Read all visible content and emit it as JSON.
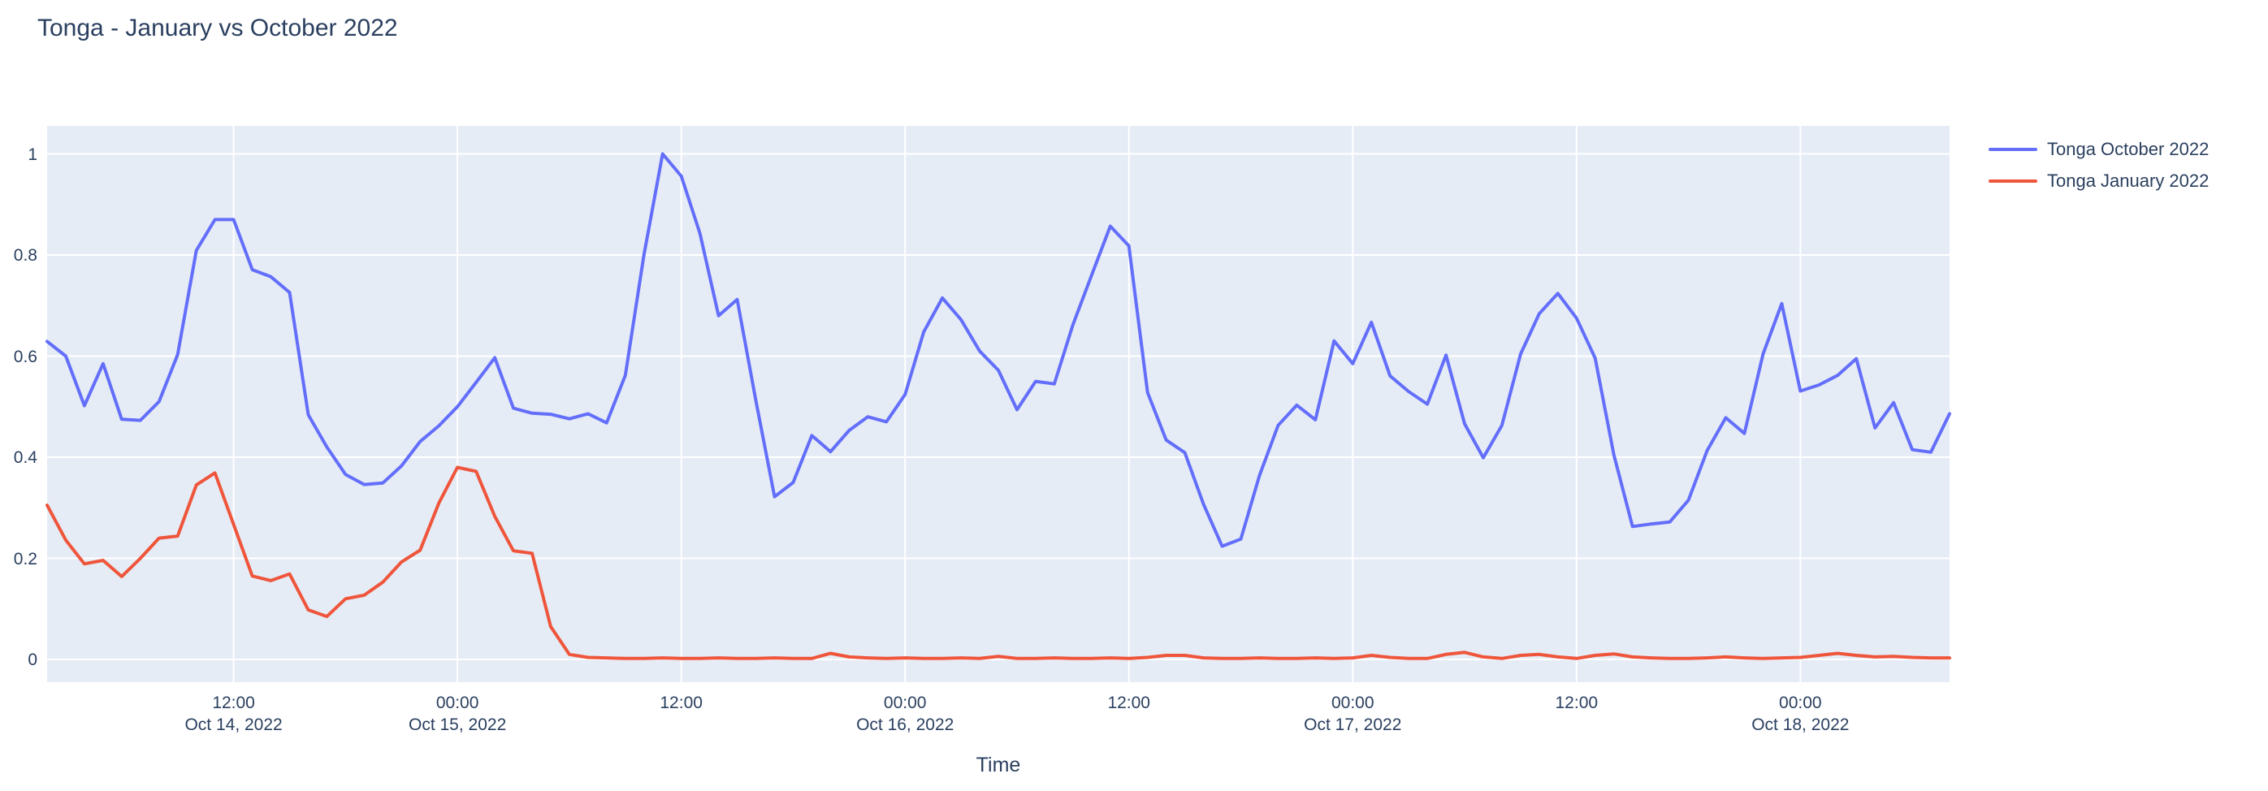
{
  "title": "Tonga - January vs October 2022",
  "colors": {
    "plot_background": "#e5ecf6",
    "grid": "#ffffff",
    "text": "#2a3f5f",
    "series_october": "#636efa",
    "series_january": "#ef553b",
    "page_background": "#ffffff"
  },
  "legend": {
    "position": "right-top",
    "items": [
      {
        "label": "Tonga October 2022",
        "color": "#636efa"
      },
      {
        "label": "Tonga January 2022",
        "color": "#ef553b"
      }
    ]
  },
  "chart_data": {
    "type": "line",
    "title": "Tonga - January vs October 2022",
    "xlabel": "Time",
    "ylabel": "",
    "grid": true,
    "legend_position": "right",
    "x_start": "2022-10-14 02:00",
    "x_step_hours": 1,
    "x_end": "2022-10-18 08:00",
    "ylim": [
      -0.045,
      1.055
    ],
    "y_ticks": [
      {
        "value": 0,
        "label": "0"
      },
      {
        "value": 0.2,
        "label": "0.2"
      },
      {
        "value": 0.4,
        "label": "0.4"
      },
      {
        "value": 0.6,
        "label": "0.6"
      },
      {
        "value": 0.8,
        "label": "0.8"
      },
      {
        "value": 1,
        "label": "1"
      }
    ],
    "x_ticks": [
      {
        "time": "12:00",
        "date": "Oct 14, 2022",
        "hour_offset": 10
      },
      {
        "time": "00:00",
        "date": "Oct 15, 2022",
        "hour_offset": 22
      },
      {
        "time": "12:00",
        "date": "",
        "hour_offset": 34
      },
      {
        "time": "00:00",
        "date": "Oct 16, 2022",
        "hour_offset": 46
      },
      {
        "time": "12:00",
        "date": "",
        "hour_offset": 58
      },
      {
        "time": "00:00",
        "date": "Oct 17, 2022",
        "hour_offset": 70
      },
      {
        "time": "12:00",
        "date": "",
        "hour_offset": 82
      },
      {
        "time": "00:00",
        "date": "Oct 18, 2022",
        "hour_offset": 94
      }
    ],
    "series": [
      {
        "name": "Tonga October 2022",
        "color": "#636efa",
        "values": [
          0.629,
          0.6,
          0.502,
          0.585,
          0.475,
          0.473,
          0.51,
          0.603,
          0.809,
          0.87,
          0.87,
          0.771,
          0.757,
          0.726,
          0.484,
          0.42,
          0.366,
          0.346,
          0.349,
          0.383,
          0.431,
          0.462,
          0.5,
          0.548,
          0.597,
          0.497,
          0.487,
          0.485,
          0.476,
          0.486,
          0.468,
          0.562,
          0.8,
          1.0,
          0.956,
          0.843,
          0.68,
          0.712,
          0.512,
          0.322,
          0.35,
          0.443,
          0.411,
          0.453,
          0.48,
          0.47,
          0.524,
          0.648,
          0.715,
          0.672,
          0.61,
          0.572,
          0.494,
          0.55,
          0.545,
          0.662,
          0.76,
          0.857,
          0.818,
          0.528,
          0.434,
          0.409,
          0.307,
          0.224,
          0.238,
          0.364,
          0.463,
          0.503,
          0.474,
          0.63,
          0.585,
          0.667,
          0.561,
          0.53,
          0.505,
          0.602,
          0.466,
          0.399,
          0.463,
          0.604,
          0.684,
          0.724,
          0.675,
          0.596,
          0.405,
          0.263,
          0.268,
          0.272,
          0.315,
          0.413,
          0.478,
          0.447,
          0.604,
          0.704,
          0.531,
          0.543,
          0.562,
          0.595,
          0.458,
          0.508,
          0.415,
          0.41,
          0.486
        ]
      },
      {
        "name": "Tonga January 2022",
        "color": "#ef553b",
        "values": [
          0.305,
          0.236,
          0.189,
          0.196,
          0.164,
          0.2,
          0.24,
          0.244,
          0.345,
          0.369,
          0.267,
          0.165,
          0.156,
          0.169,
          0.098,
          0.085,
          0.12,
          0.127,
          0.153,
          0.193,
          0.216,
          0.309,
          0.38,
          0.372,
          0.283,
          0.215,
          0.21,
          0.065,
          0.01,
          0.004,
          0.003,
          0.002,
          0.002,
          0.003,
          0.002,
          0.002,
          0.003,
          0.002,
          0.002,
          0.003,
          0.002,
          0.002,
          0.012,
          0.005,
          0.003,
          0.002,
          0.003,
          0.002,
          0.002,
          0.003,
          0.002,
          0.006,
          0.002,
          0.002,
          0.003,
          0.002,
          0.002,
          0.003,
          0.002,
          0.004,
          0.008,
          0.008,
          0.003,
          0.002,
          0.002,
          0.003,
          0.002,
          0.002,
          0.003,
          0.002,
          0.003,
          0.008,
          0.004,
          0.002,
          0.002,
          0.01,
          0.014,
          0.005,
          0.002,
          0.008,
          0.01,
          0.005,
          0.002,
          0.008,
          0.011,
          0.005,
          0.003,
          0.002,
          0.002,
          0.003,
          0.005,
          0.003,
          0.002,
          0.003,
          0.004,
          0.008,
          0.012,
          0.008,
          0.005,
          0.006,
          0.004,
          0.003,
          0.003
        ]
      }
    ]
  }
}
